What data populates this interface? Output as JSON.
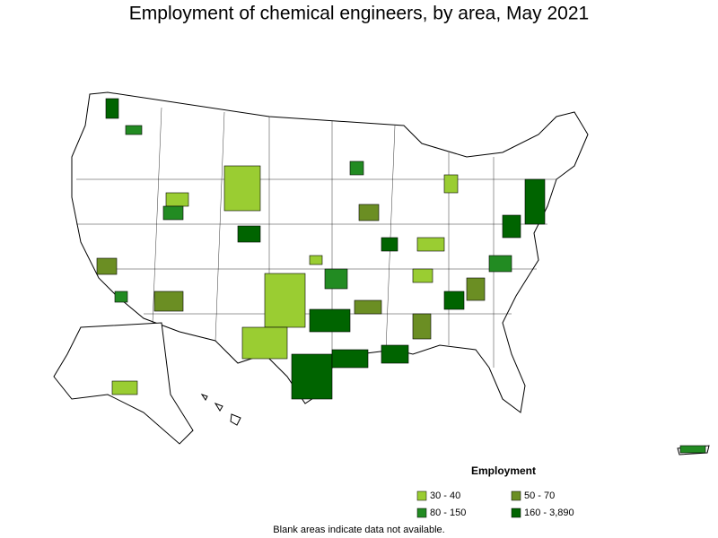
{
  "title": "Employment of chemical engineers, by area, May 2021",
  "legend": {
    "title": "Employment",
    "items": [
      {
        "label": "30 - 40",
        "color": "#9acd32"
      },
      {
        "label": "50 - 70",
        "color": "#6b8e23"
      },
      {
        "label": "80 - 150",
        "color": "#228b22"
      },
      {
        "label": "160 - 3,890",
        "color": "#006400"
      }
    ]
  },
  "note": "Blank areas indicate data not available."
}
